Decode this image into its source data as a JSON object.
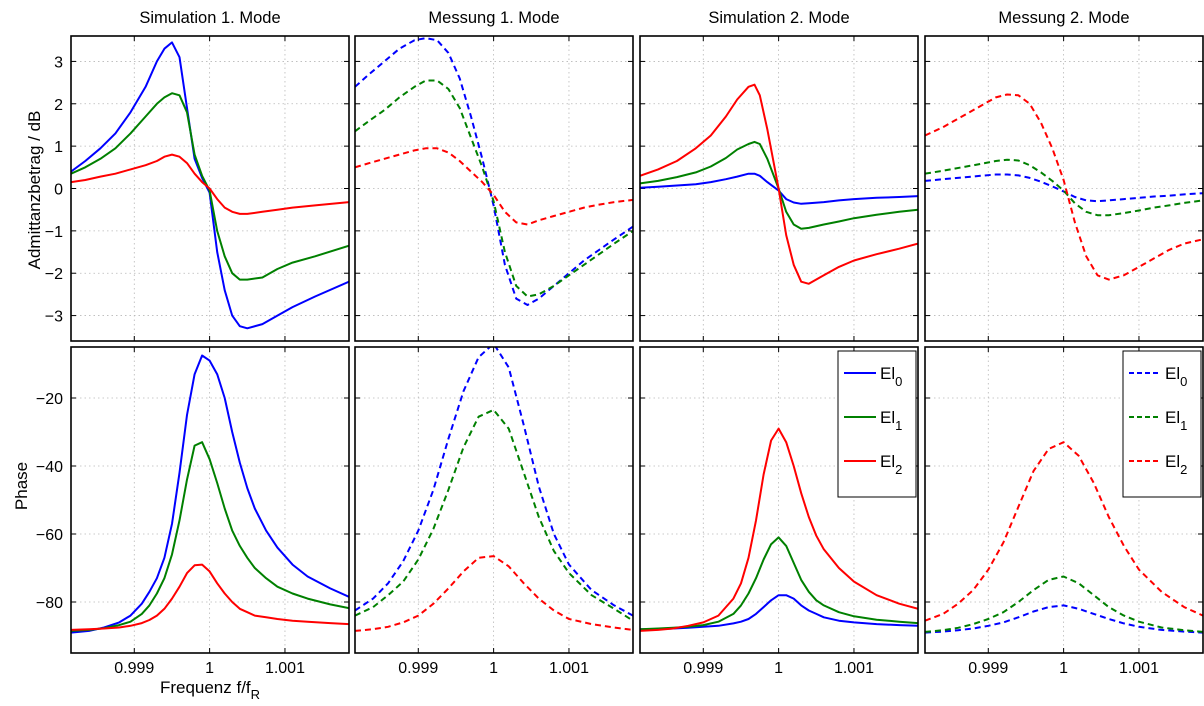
{
  "figure": {
    "xlabel": "Frequenz f/f",
    "xlabel_sub": "R",
    "x_ticks": [
      0.999,
      1,
      1.001
    ],
    "x_tick_labels": [
      "0.999",
      "1",
      "1.001"
    ],
    "xlim": [
      0.99816,
      1.00185
    ]
  },
  "rows": [
    {
      "ylabel": "Admittanzbetrag / dB",
      "ylim": [
        -3.6,
        3.6
      ],
      "y_ticks": [
        -3,
        -2,
        -1,
        0,
        1,
        2,
        3
      ],
      "y_tick_labels": [
        "−3",
        "−2",
        "−1",
        "0",
        "1",
        "2",
        "3"
      ]
    },
    {
      "ylabel": "Phase",
      "ylim": [
        -95,
        -5
      ],
      "y_ticks": [
        -80,
        -60,
        -40,
        -20
      ],
      "y_tick_labels": [
        "−80",
        "−60",
        "−40",
        "−20"
      ]
    }
  ],
  "legend_entries": [
    {
      "base": "El",
      "sub": "0"
    },
    {
      "base": "El",
      "sub": "1"
    },
    {
      "base": "El",
      "sub": "2"
    }
  ],
  "colors": {
    "El0": "#0000ff",
    "El1": "#008000",
    "El2": "#ff0000"
  },
  "chart_data": [
    {
      "type": "line",
      "title": "Simulation 1. Mode",
      "ylabel": "Admittanzbetrag / dB",
      "line_style": "solid",
      "x": [
        0.99816,
        0.99835,
        0.99855,
        0.99875,
        0.99895,
        0.99915,
        0.9993,
        0.9994,
        0.9995,
        0.9996,
        0.9997,
        0.9998,
        0.9999,
        1.0,
        1.0001,
        1.0002,
        1.0003,
        1.0004,
        1.0005,
        1.0007,
        1.0009,
        1.0011,
        1.0014,
        1.00185
      ],
      "series": [
        {
          "name": "El₀",
          "color": "#0000ff",
          "values": [
            0.4,
            0.65,
            0.95,
            1.3,
            1.8,
            2.4,
            3.0,
            3.3,
            3.45,
            3.1,
            1.9,
            0.7,
            0.25,
            -0.1,
            -1.5,
            -2.4,
            -3.0,
            -3.25,
            -3.3,
            -3.2,
            -3.0,
            -2.8,
            -2.55,
            -2.2
          ]
        },
        {
          "name": "El₁",
          "color": "#008000",
          "values": [
            0.35,
            0.5,
            0.7,
            0.95,
            1.3,
            1.7,
            2.0,
            2.15,
            2.25,
            2.2,
            1.8,
            0.8,
            0.3,
            -0.05,
            -1.0,
            -1.6,
            -2.0,
            -2.15,
            -2.15,
            -2.1,
            -1.9,
            -1.75,
            -1.6,
            -1.35
          ]
        },
        {
          "name": "El₂",
          "color": "#ff0000",
          "values": [
            0.15,
            0.2,
            0.28,
            0.35,
            0.45,
            0.55,
            0.65,
            0.75,
            0.8,
            0.75,
            0.6,
            0.35,
            0.15,
            0.0,
            -0.25,
            -0.45,
            -0.55,
            -0.6,
            -0.6,
            -0.55,
            -0.5,
            -0.45,
            -0.4,
            -0.32
          ]
        }
      ]
    },
    {
      "type": "line",
      "title": "Messung 1. Mode",
      "ylabel": "",
      "line_style": "dashed",
      "x": [
        0.99816,
        0.99835,
        0.99855,
        0.99875,
        0.99895,
        0.9991,
        0.99925,
        0.9994,
        0.99955,
        0.9997,
        0.99985,
        1.0,
        1.00015,
        1.0003,
        1.00045,
        1.0006,
        1.0008,
        1.001,
        1.0012,
        1.0014,
        1.0016,
        1.00185
      ],
      "series": [
        {
          "name": "El₀",
          "color": "#0000ff",
          "values": [
            2.4,
            2.7,
            3.0,
            3.3,
            3.5,
            3.55,
            3.5,
            3.2,
            2.6,
            1.7,
            0.7,
            -0.4,
            -1.8,
            -2.6,
            -2.75,
            -2.6,
            -2.3,
            -2.0,
            -1.7,
            -1.45,
            -1.2,
            -0.9
          ]
        },
        {
          "name": "El₁",
          "color": "#008000",
          "values": [
            1.35,
            1.6,
            1.85,
            2.15,
            2.4,
            2.55,
            2.55,
            2.35,
            1.9,
            1.2,
            0.5,
            -0.3,
            -1.5,
            -2.3,
            -2.55,
            -2.5,
            -2.3,
            -2.05,
            -1.8,
            -1.55,
            -1.3,
            -1.0
          ]
        },
        {
          "name": "El₂",
          "color": "#ff0000",
          "values": [
            0.5,
            0.6,
            0.7,
            0.8,
            0.9,
            0.95,
            0.95,
            0.85,
            0.65,
            0.4,
            0.15,
            -0.15,
            -0.55,
            -0.8,
            -0.85,
            -0.75,
            -0.65,
            -0.55,
            -0.45,
            -0.38,
            -0.32,
            -0.27
          ]
        }
      ]
    },
    {
      "type": "line",
      "title": "Simulation 2. Mode",
      "ylabel": "",
      "line_style": "solid",
      "x": [
        0.99816,
        0.9984,
        0.99865,
        0.9989,
        0.9991,
        0.9993,
        0.99945,
        0.9996,
        0.99968,
        0.99975,
        0.99985,
        1.0,
        1.0001,
        1.0002,
        1.0003,
        1.0004,
        1.0006,
        1.0008,
        1.001,
        1.0013,
        1.0016,
        1.00185
      ],
      "series": [
        {
          "name": "El₀",
          "color": "#0000ff",
          "values": [
            0.02,
            0.04,
            0.07,
            0.1,
            0.15,
            0.22,
            0.28,
            0.35,
            0.35,
            0.3,
            0.15,
            -0.05,
            -0.25,
            -0.33,
            -0.36,
            -0.35,
            -0.32,
            -0.28,
            -0.25,
            -0.22,
            -0.2,
            -0.18
          ]
        },
        {
          "name": "El₁",
          "color": "#008000",
          "values": [
            0.12,
            0.18,
            0.27,
            0.38,
            0.52,
            0.72,
            0.92,
            1.05,
            1.1,
            1.05,
            0.7,
            0.0,
            -0.55,
            -0.85,
            -0.95,
            -0.93,
            -0.85,
            -0.78,
            -0.7,
            -0.62,
            -0.55,
            -0.5
          ]
        },
        {
          "name": "El₂",
          "color": "#ff0000",
          "values": [
            0.3,
            0.45,
            0.65,
            0.95,
            1.25,
            1.7,
            2.1,
            2.4,
            2.45,
            2.2,
            1.4,
            0.0,
            -1.1,
            -1.8,
            -2.2,
            -2.25,
            -2.05,
            -1.85,
            -1.7,
            -1.55,
            -1.42,
            -1.3
          ]
        }
      ]
    },
    {
      "type": "line",
      "title": "Messung 2. Mode",
      "ylabel": "",
      "line_style": "dashed",
      "x": [
        0.99816,
        0.9984,
        0.99865,
        0.9989,
        0.9991,
        0.99925,
        0.9994,
        0.99955,
        0.9997,
        0.99985,
        1.0,
        1.00015,
        1.0003,
        1.00045,
        1.0006,
        1.0008,
        1.001,
        1.0012,
        1.0014,
        1.0016,
        1.00185
      ],
      "series": [
        {
          "name": "El₀",
          "color": "#0000ff",
          "values": [
            0.18,
            0.22,
            0.26,
            0.3,
            0.33,
            0.33,
            0.31,
            0.25,
            0.16,
            0.05,
            -0.07,
            -0.2,
            -0.28,
            -0.3,
            -0.28,
            -0.25,
            -0.22,
            -0.19,
            -0.17,
            -0.14,
            -0.11
          ]
        },
        {
          "name": "El₁",
          "color": "#008000",
          "values": [
            0.35,
            0.42,
            0.5,
            0.58,
            0.65,
            0.68,
            0.66,
            0.55,
            0.38,
            0.18,
            -0.05,
            -0.35,
            -0.55,
            -0.63,
            -0.63,
            -0.58,
            -0.52,
            -0.45,
            -0.4,
            -0.34,
            -0.28
          ]
        },
        {
          "name": "El₂",
          "color": "#ff0000",
          "values": [
            1.25,
            1.45,
            1.7,
            1.95,
            2.15,
            2.22,
            2.2,
            2.0,
            1.55,
            0.95,
            0.2,
            -0.8,
            -1.6,
            -2.05,
            -2.15,
            -2.05,
            -1.85,
            -1.65,
            -1.45,
            -1.3,
            -1.2
          ]
        }
      ]
    },
    {
      "type": "line",
      "title": "",
      "ylabel": "Phase",
      "line_style": "solid",
      "x": [
        0.99816,
        0.9984,
        0.9986,
        0.9988,
        0.99895,
        0.9991,
        0.9992,
        0.9993,
        0.9994,
        0.9995,
        0.9996,
        0.9997,
        0.9998,
        0.9999,
        1.0,
        1.0001,
        1.0002,
        1.0003,
        1.0004,
        1.0005,
        1.0006,
        1.00075,
        1.0009,
        1.0011,
        1.0013,
        1.0016,
        1.00185
      ],
      "series": [
        {
          "name": "El₀",
          "color": "#0000ff",
          "values": [
            -89,
            -88.5,
            -87.5,
            -86,
            -84,
            -80.5,
            -77,
            -73,
            -67,
            -57,
            -42,
            -25,
            -13,
            -7.5,
            -9,
            -13,
            -20,
            -30,
            -39,
            -46.5,
            -52.5,
            -59,
            -64,
            -69,
            -72.5,
            -76,
            -78.5
          ]
        },
        {
          "name": "El₁",
          "color": "#008000",
          "values": [
            -88.5,
            -88.2,
            -87.7,
            -86.8,
            -85.8,
            -83.5,
            -81,
            -77.5,
            -73,
            -66,
            -56,
            -44,
            -34,
            -33,
            -38,
            -45,
            -52.5,
            -59,
            -63.5,
            -67,
            -70,
            -73,
            -75.5,
            -77.5,
            -79,
            -80.7,
            -81.8
          ]
        },
        {
          "name": "El₂",
          "color": "#ff0000",
          "values": [
            -88.2,
            -88,
            -87.8,
            -87.5,
            -87,
            -86.2,
            -85.3,
            -84,
            -82,
            -79,
            -75.5,
            -71.5,
            -69.2,
            -69,
            -71,
            -74.5,
            -77.5,
            -80,
            -82,
            -83,
            -84,
            -84.5,
            -85,
            -85.5,
            -85.8,
            -86.2,
            -86.5
          ]
        }
      ]
    },
    {
      "type": "line",
      "title": "",
      "ylabel": "",
      "line_style": "dashed",
      "x": [
        0.99816,
        0.9984,
        0.9986,
        0.9988,
        0.999,
        0.9992,
        0.9994,
        0.9996,
        0.9998,
        1.0,
        1.0002,
        1.0004,
        1.0006,
        1.0008,
        1.001,
        1.0013,
        1.0016,
        1.00185
      ],
      "series": [
        {
          "name": "El₀",
          "color": "#0000ff",
          "values": [
            -82.5,
            -79,
            -74.5,
            -68,
            -59,
            -47,
            -32,
            -18,
            -8,
            -4,
            -11,
            -28,
            -46,
            -60,
            -69,
            -76.5,
            -81,
            -84
          ]
        },
        {
          "name": "El₁",
          "color": "#008000",
          "values": [
            -84,
            -81.5,
            -78,
            -74,
            -67.5,
            -58.5,
            -47,
            -34.5,
            -25.5,
            -23.5,
            -29,
            -42,
            -55,
            -65,
            -71.5,
            -78,
            -82,
            -85.5
          ]
        },
        {
          "name": "El₂",
          "color": "#ff0000",
          "values": [
            -88.5,
            -88,
            -87.3,
            -86,
            -84,
            -80.5,
            -76,
            -71,
            -67,
            -66.5,
            -69.5,
            -74.5,
            -79,
            -82.5,
            -85,
            -86.5,
            -87.5,
            -88.2
          ]
        }
      ]
    },
    {
      "type": "line",
      "title": "",
      "ylabel": "",
      "line_style": "solid",
      "x": [
        0.99816,
        0.9984,
        0.9986,
        0.9988,
        0.999,
        0.9992,
        0.9994,
        0.9995,
        0.9996,
        0.9997,
        0.9998,
        0.9999,
        1.0,
        1.0001,
        1.0002,
        1.0003,
        1.0004,
        1.0005,
        1.0006,
        1.0008,
        1.001,
        1.0013,
        1.0016,
        1.00185
      ],
      "series": [
        {
          "name": "El₀",
          "color": "#0000ff",
          "values": [
            -88,
            -88,
            -87.8,
            -87.6,
            -87.3,
            -87,
            -86.3,
            -85.8,
            -85,
            -83.5,
            -81.5,
            -79.5,
            -78,
            -78,
            -79,
            -81,
            -82.5,
            -83.5,
            -84.5,
            -85.5,
            -86,
            -86.5,
            -86.8,
            -87
          ]
        },
        {
          "name": "El₁",
          "color": "#008000",
          "values": [
            -88,
            -87.8,
            -87.6,
            -87.3,
            -86.8,
            -85.8,
            -83.5,
            -81,
            -77.5,
            -73,
            -67.5,
            -63,
            -61,
            -63.5,
            -68.5,
            -73.5,
            -77,
            -79.5,
            -81,
            -83,
            -84.2,
            -85.2,
            -85.8,
            -86.2
          ]
        },
        {
          "name": "El₂",
          "color": "#ff0000",
          "values": [
            -88.5,
            -88.2,
            -87.8,
            -87,
            -86,
            -84,
            -79,
            -74.5,
            -67,
            -56,
            -42.5,
            -32.5,
            -29,
            -33,
            -40,
            -48,
            -55,
            -60.5,
            -64.5,
            -70,
            -74,
            -78,
            -80.5,
            -82
          ]
        }
      ]
    },
    {
      "type": "line",
      "title": "",
      "ylabel": "",
      "line_style": "dashed",
      "x": [
        0.99816,
        0.9984,
        0.9986,
        0.9988,
        0.999,
        0.9992,
        0.9994,
        0.9996,
        0.9998,
        1.0,
        1.0002,
        1.0004,
        1.0006,
        1.0008,
        1.001,
        1.0013,
        1.0016,
        1.00185
      ],
      "series": [
        {
          "name": "El₀",
          "color": "#0000ff",
          "values": [
            -89,
            -88.7,
            -88.3,
            -87.8,
            -87,
            -86,
            -84.5,
            -82.8,
            -81.5,
            -81,
            -82,
            -83.5,
            -85,
            -86.3,
            -87.3,
            -88.2,
            -88.7,
            -89
          ]
        },
        {
          "name": "El₁",
          "color": "#008000",
          "values": [
            -88.8,
            -88.3,
            -87.6,
            -86.5,
            -85,
            -83,
            -80,
            -76.5,
            -73.5,
            -72.5,
            -74.5,
            -78,
            -81.5,
            -84,
            -85.8,
            -87.5,
            -88.3,
            -88.8
          ]
        },
        {
          "name": "El₂",
          "color": "#ff0000",
          "values": [
            -85.5,
            -83.5,
            -80.5,
            -76.5,
            -70.5,
            -62.5,
            -52,
            -41.5,
            -35,
            -33,
            -37,
            -45,
            -55,
            -63.5,
            -70.5,
            -77,
            -81.5,
            -84
          ]
        }
      ]
    }
  ]
}
